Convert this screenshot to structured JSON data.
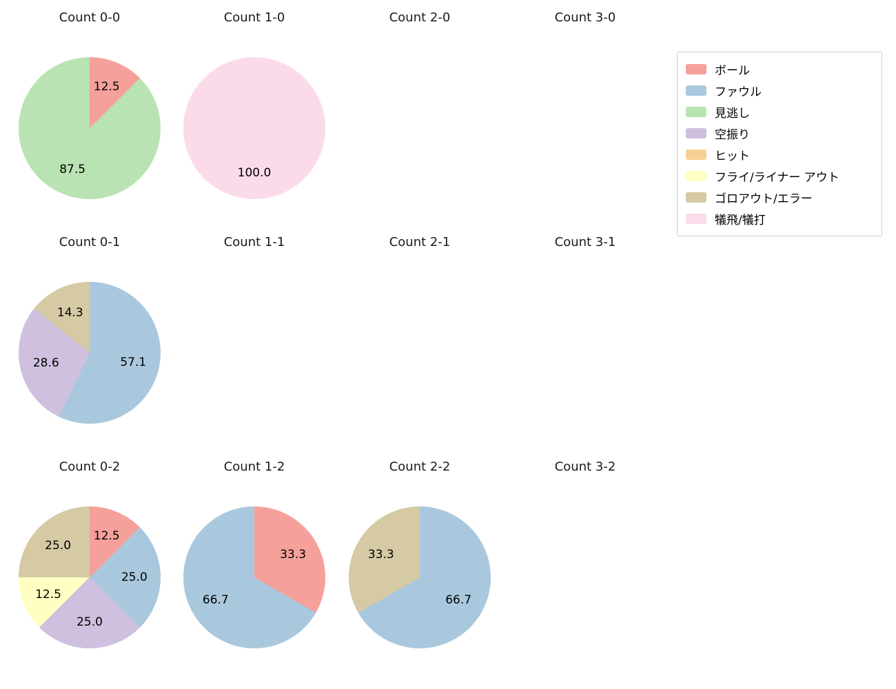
{
  "legend": {
    "items": [
      {
        "label": "ボール",
        "color": "#f5a09a"
      },
      {
        "label": "ファウル",
        "color": "#aac8dd"
      },
      {
        "label": "見逃し",
        "color": "#b9e3b2"
      },
      {
        "label": "空振り",
        "color": "#cec0de"
      },
      {
        "label": "ヒット",
        "color": "#f8d094"
      },
      {
        "label": "フライ/ライナー アウト",
        "color": "#ffffc3"
      },
      {
        "label": "ゴロアウト/エラー",
        "color": "#d5caa4"
      },
      {
        "label": "犠飛/犠打",
        "color": "#fbdbea"
      }
    ]
  },
  "chart_data": [
    {
      "type": "pie",
      "title": "Count 0-0",
      "slices": [
        {
          "category": "ボール",
          "value": 12.5
        },
        {
          "category": "見逃し",
          "value": 87.5
        }
      ]
    },
    {
      "type": "pie",
      "title": "Count 1-0",
      "slices": [
        {
          "category": "犠飛/犠打",
          "value": 100.0
        }
      ]
    },
    {
      "type": "pie",
      "title": "Count 2-0",
      "slices": []
    },
    {
      "type": "pie",
      "title": "Count 3-0",
      "slices": []
    },
    {
      "type": "pie",
      "title": "Count 0-1",
      "slices": [
        {
          "category": "ファウル",
          "value": 57.1
        },
        {
          "category": "空振り",
          "value": 28.6
        },
        {
          "category": "ゴロアウト/エラー",
          "value": 14.3
        }
      ]
    },
    {
      "type": "pie",
      "title": "Count 1-1",
      "slices": []
    },
    {
      "type": "pie",
      "title": "Count 2-1",
      "slices": []
    },
    {
      "type": "pie",
      "title": "Count 3-1",
      "slices": []
    },
    {
      "type": "pie",
      "title": "Count 0-2",
      "slices": [
        {
          "category": "ボール",
          "value": 12.5
        },
        {
          "category": "ファウル",
          "value": 25.0
        },
        {
          "category": "空振り",
          "value": 25.0
        },
        {
          "category": "フライ/ライナー アウト",
          "value": 12.5
        },
        {
          "category": "ゴロアウト/エラー",
          "value": 25.0
        }
      ]
    },
    {
      "type": "pie",
      "title": "Count 1-2",
      "slices": [
        {
          "category": "ボール",
          "value": 33.3
        },
        {
          "category": "ファウル",
          "value": 66.7
        }
      ]
    },
    {
      "type": "pie",
      "title": "Count 2-2",
      "slices": [
        {
          "category": "ファウル",
          "value": 66.7
        },
        {
          "category": "ゴロアウト/エラー",
          "value": 33.3
        }
      ]
    },
    {
      "type": "pie",
      "title": "Count 3-2",
      "slices": []
    }
  ]
}
